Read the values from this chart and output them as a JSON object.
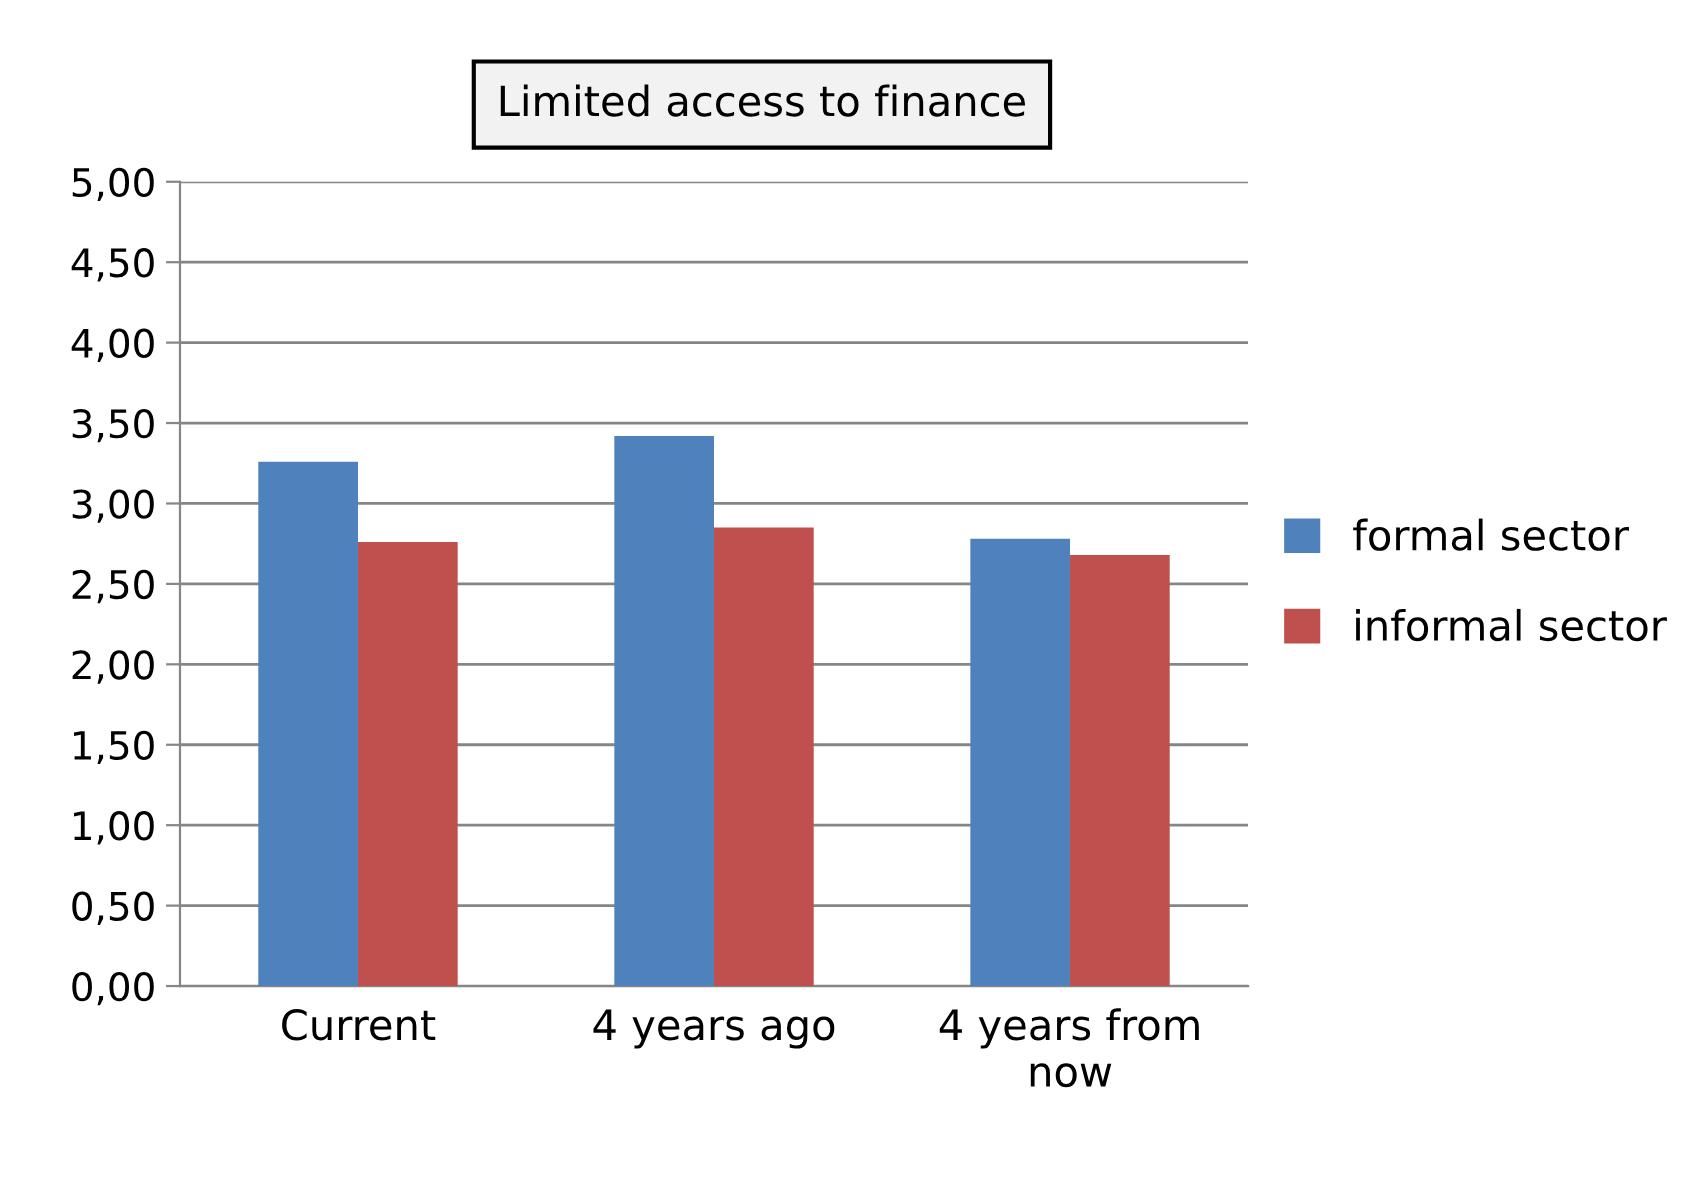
{
  "chart_data": {
    "type": "bar",
    "title": "Limited access to finance",
    "categories": [
      "Current",
      "4 years ago",
      "4 years from now"
    ],
    "series": [
      {
        "name": "formal sector",
        "color": "#4f81bd",
        "values": [
          3.26,
          3.42,
          2.78
        ]
      },
      {
        "name": "informal sector",
        "color": "#c0504d",
        "values": [
          2.76,
          2.85,
          2.68
        ]
      }
    ],
    "ylim": [
      0,
      5
    ],
    "yticks": [
      {
        "value": 0,
        "label": "0,00"
      },
      {
        "value": 0.5,
        "label": "0,50"
      },
      {
        "value": 1,
        "label": "1,00"
      },
      {
        "value": 1.5,
        "label": "1,50"
      },
      {
        "value": 2,
        "label": "2,00"
      },
      {
        "value": 2.5,
        "label": "2,50"
      },
      {
        "value": 3,
        "label": "3,00"
      },
      {
        "value": 3.5,
        "label": "3,50"
      },
      {
        "value": 4,
        "label": "4,00"
      },
      {
        "value": 4.5,
        "label": "4,50"
      },
      {
        "value": 5,
        "label": "5,00"
      }
    ],
    "grid": "y",
    "legend": "right"
  }
}
